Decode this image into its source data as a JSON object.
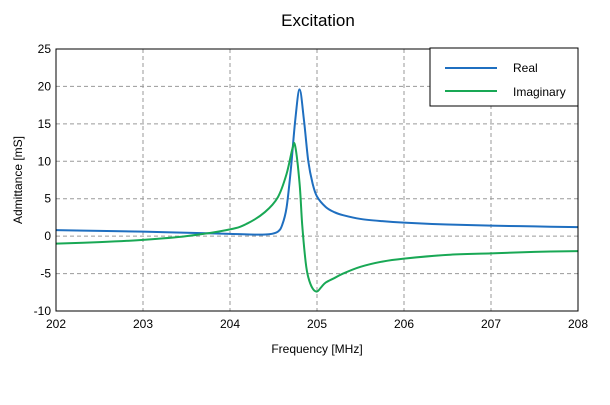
{
  "chart_data": {
    "type": "line",
    "title": "Excitation",
    "xlabel": "Frequency [MHz]",
    "ylabel": "Admittance [mS]",
    "xlim": [
      202,
      208
    ],
    "ylim": [
      -10,
      25
    ],
    "x_ticks": [
      "202",
      "203",
      "204",
      "205",
      "206",
      "207",
      "208"
    ],
    "y_ticks": [
      "-10",
      "-5",
      "0",
      "5",
      "10",
      "15",
      "20",
      "25"
    ],
    "grid": true,
    "legend_position": "top-right",
    "series": [
      {
        "name": "Real",
        "color": "#1f6fc0",
        "x": [
          202.0,
          202.5,
          203.0,
          203.5,
          204.0,
          204.3,
          204.45,
          204.55,
          204.6,
          204.65,
          204.7,
          204.75,
          204.8,
          204.85,
          204.9,
          204.95,
          205.0,
          205.1,
          205.2,
          205.3,
          205.5,
          205.75,
          206.0,
          206.5,
          207.0,
          207.5,
          208.0
        ],
        "y": [
          0.8,
          0.7,
          0.6,
          0.45,
          0.3,
          0.2,
          0.25,
          0.6,
          1.5,
          3.8,
          9.0,
          15.5,
          19.6,
          15.5,
          10.0,
          7.0,
          5.3,
          3.9,
          3.2,
          2.8,
          2.3,
          2.0,
          1.8,
          1.55,
          1.4,
          1.3,
          1.2
        ]
      },
      {
        "name": "Imaginary",
        "color": "#19a855",
        "x": [
          202.0,
          202.5,
          203.0,
          203.5,
          204.0,
          204.2,
          204.4,
          204.55,
          204.65,
          204.72,
          204.75,
          204.8,
          204.83,
          204.87,
          204.9,
          204.95,
          205.0,
          205.05,
          205.1,
          205.2,
          205.3,
          205.5,
          205.75,
          206.0,
          206.5,
          207.0,
          207.5,
          208.0
        ],
        "y": [
          -1.0,
          -0.8,
          -0.5,
          0.0,
          0.9,
          1.7,
          3.2,
          5.2,
          8.3,
          11.8,
          12.0,
          7.0,
          1.5,
          -3.5,
          -5.5,
          -7.0,
          -7.4,
          -6.8,
          -6.2,
          -5.6,
          -5.0,
          -4.1,
          -3.4,
          -3.0,
          -2.5,
          -2.3,
          -2.1,
          -2.0
        ]
      }
    ]
  }
}
